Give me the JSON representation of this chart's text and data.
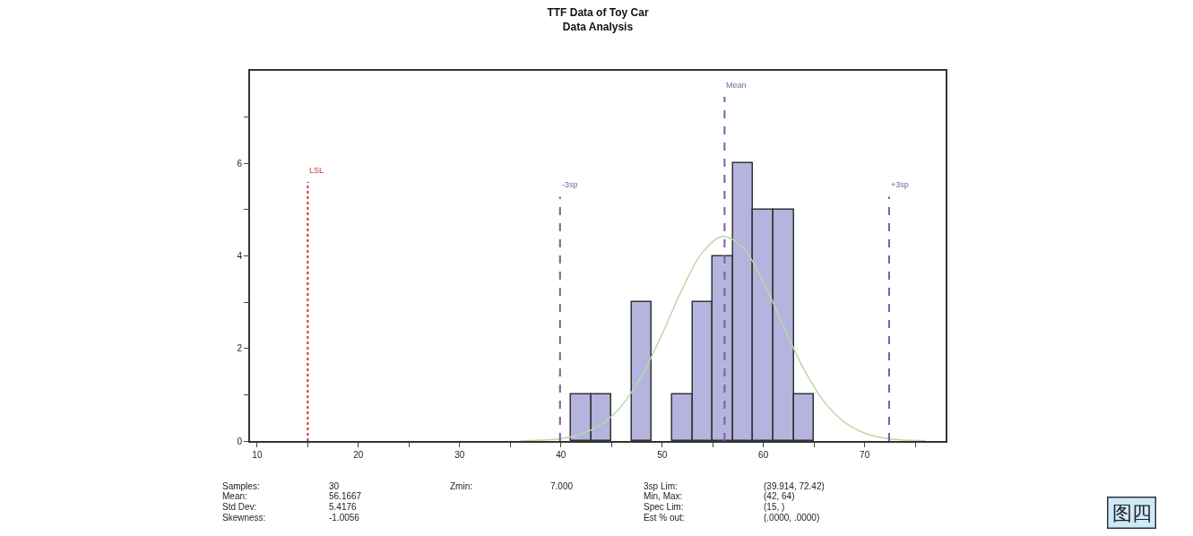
{
  "chart_data": {
    "type": "histogram",
    "title": "TTF Data of Toy Car\nData Analysis",
    "bins": [
      41,
      43,
      45,
      47,
      49,
      51,
      53,
      55,
      57,
      59,
      61,
      63,
      65
    ],
    "values": [
      1,
      1,
      0,
      3,
      0,
      1,
      3,
      4,
      6,
      5,
      5,
      1
    ],
    "color": "#b4b4de",
    "series": [
      {
        "type": "line",
        "color": "#b9d9a6",
        "x": [
          36,
          38,
          40,
          42,
          44,
          46,
          48,
          50,
          52,
          54,
          56,
          58,
          60,
          62,
          64,
          66,
          68,
          70,
          72,
          74,
          76
        ],
        "values": [
          0.0,
          0.02,
          0.05,
          0.15,
          0.36,
          0.76,
          1.42,
          2.31,
          3.29,
          4.08,
          4.42,
          4.17,
          3.44,
          2.47,
          1.55,
          0.85,
          0.41,
          0.17,
          0.06,
          0.02,
          0.01
        ]
      }
    ],
    "xlim": [
      9.3,
      78
    ],
    "xticks": [
      10,
      {
        "value": 15,
        "label": null
      },
      20,
      {
        "value": 25,
        "label": null
      },
      30,
      {
        "value": 35,
        "label": null
      },
      40,
      {
        "value": 45,
        "label": null
      },
      50,
      {
        "value": 55,
        "label": null
      },
      60,
      {
        "value": 65,
        "label": null
      },
      70,
      {
        "value": 75,
        "label": null
      }
    ],
    "ylim": [
      0,
      8
    ],
    "yticks": [
      0,
      {
        "value": 1,
        "label": null
      },
      2,
      {
        "value": 3,
        "label": null
      },
      4,
      {
        "value": 5,
        "label": null
      },
      6,
      {
        "value": 7,
        "label": null
      }
    ],
    "ref_lines": [
      {
        "axis": "x",
        "value": 15,
        "label": "LSL",
        "color": "#d0302a",
        "line_style": "dotted"
      },
      {
        "axis": "x",
        "value": 39.914,
        "label": "-3sp",
        "color": "#7b5ea0",
        "line_style": "dashed"
      },
      {
        "axis": "x",
        "value": 56.1667,
        "label": "Mean",
        "color": "#7b5ea0",
        "line_style": "dashed"
      },
      {
        "axis": "x",
        "value": 72.42,
        "label": "+3sp",
        "color": "#7b5ea0",
        "line_style": "dashed"
      }
    ],
    "annotations": [
      "Samples:",
      "Mean:",
      "Std Dev:",
      "Skewness:",
      "30",
      "56.1667",
      "5.4176",
      "-1.0056",
      "Zmin:",
      "7.000",
      "3sp Lim:",
      "Min, Max:",
      "Spec Lim:",
      "Est % out:",
      "(39.914, 72.42)",
      "(42, 64)",
      "(15, )",
      "(.0000, .0000)",
      "图四"
    ]
  }
}
